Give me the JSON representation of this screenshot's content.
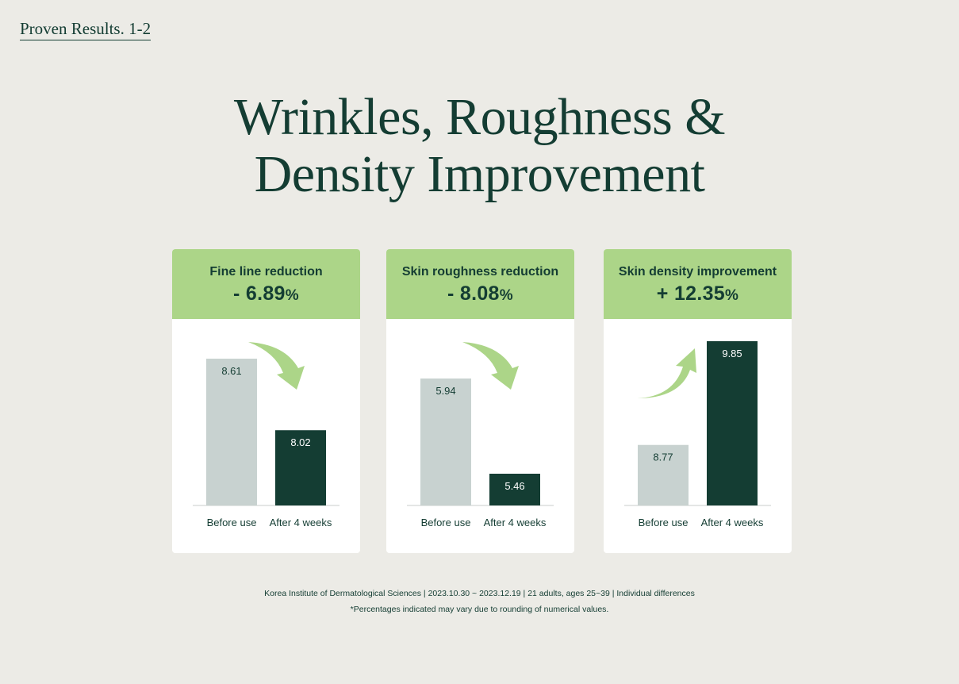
{
  "header": {
    "section_link": "Proven Results. 1-2"
  },
  "title": {
    "line1": "Wrinkles, Roughness &",
    "line2": "Density Improvement"
  },
  "colors": {
    "background": "#ecebe6",
    "accent_green": "#acd588",
    "before_bar": "#c8d2d0",
    "after_bar": "#143d33",
    "text_dark": "#143d33"
  },
  "chart_data": [
    {
      "type": "bar",
      "title": "Fine line reduction",
      "change_sign": "-",
      "change_value": "6.89",
      "change_unit": "%",
      "categories": [
        "Before use",
        "After 4 weeks"
      ],
      "values": [
        8.61,
        8.02
      ],
      "value_labels": [
        "8.61",
        "8.02"
      ],
      "direction": "down",
      "arrow_icon": "curved-arrow-down-icon"
    },
    {
      "type": "bar",
      "title": "Skin roughness reduction",
      "change_sign": "-",
      "change_value": "8.08",
      "change_unit": "%",
      "categories": [
        "Before use",
        "After 4 weeks"
      ],
      "values": [
        5.94,
        5.46
      ],
      "value_labels": [
        "5.94",
        "5.46"
      ],
      "direction": "down",
      "arrow_icon": "curved-arrow-down-icon"
    },
    {
      "type": "bar",
      "title": "Skin density improvement",
      "change_sign": "+",
      "change_value": "12.35",
      "change_unit": "%",
      "categories": [
        "Before use",
        "After 4 weeks"
      ],
      "values": [
        8.77,
        9.85
      ],
      "value_labels": [
        "8.77",
        "9.85"
      ],
      "direction": "up",
      "arrow_icon": "curved-arrow-up-icon"
    }
  ],
  "footnotes": {
    "source": "Korea Institute of Dermatological Sciences | 2023.10.30 ~ 2023.12.19 | 21 adults, ages 25~39 | Individual differences",
    "disclaimer": "*Percentages indicated may vary due to rounding of numerical values."
  }
}
